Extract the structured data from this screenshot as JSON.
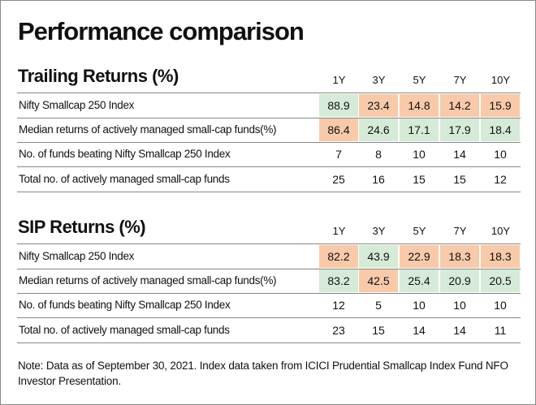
{
  "title": "Performance comparison",
  "sections": [
    {
      "heading": "Trailing Returns (%)",
      "columns": [
        "1Y",
        "3Y",
        "5Y",
        "7Y",
        "10Y"
      ],
      "rows": [
        {
          "label": "Nifty Smallcap 250 Index",
          "values": [
            88.9,
            23.4,
            14.8,
            14.2,
            15.9
          ],
          "colors": [
            "#d6ebd7",
            "#f8caa9",
            "#f8caa9",
            "#f8caa9",
            "#f8caa9"
          ]
        },
        {
          "label": "Median returns of actively managed small-cap funds(%)",
          "values": [
            86.4,
            24.6,
            17.1,
            17.9,
            18.4
          ],
          "colors": [
            "#f8caa9",
            "#d6ebd7",
            "#d6ebd7",
            "#d6ebd7",
            "#d6ebd7"
          ]
        },
        {
          "label": "No. of funds beating Nifty Smallcap 250 Index",
          "values": [
            7,
            8,
            10,
            14,
            10
          ]
        },
        {
          "label": "Total no. of actively managed small-cap funds",
          "values": [
            25,
            16,
            15,
            15,
            12
          ]
        }
      ]
    },
    {
      "heading": "SIP Returns (%)",
      "columns": [
        "1Y",
        "3Y",
        "5Y",
        "7Y",
        "10Y"
      ],
      "rows": [
        {
          "label": "Nifty Smallcap 250 Index",
          "values": [
            82.2,
            43.9,
            22.9,
            18.3,
            18.3
          ],
          "colors": [
            "#f8caa9",
            "#d6ebd7",
            "#f8caa9",
            "#f8caa9",
            "#f8caa9"
          ]
        },
        {
          "label": "Median returns of actively managed small-cap funds(%)",
          "values": [
            83.2,
            42.5,
            25.4,
            20.9,
            20.5
          ],
          "colors": [
            "#d6ebd7",
            "#f8caa9",
            "#d6ebd7",
            "#d6ebd7",
            "#d6ebd7"
          ]
        },
        {
          "label": "No. of funds beating Nifty Smallcap 250 Index",
          "values": [
            12,
            5,
            10,
            10,
            10
          ]
        },
        {
          "label": "Total no. of actively managed small-cap funds",
          "values": [
            23,
            15,
            14,
            14,
            11
          ]
        }
      ]
    }
  ],
  "note": "Note: Data as of September 30, 2021. Index data taken from ICICI Prudential Smallcap Index Fund NFO Investor Presentation."
}
